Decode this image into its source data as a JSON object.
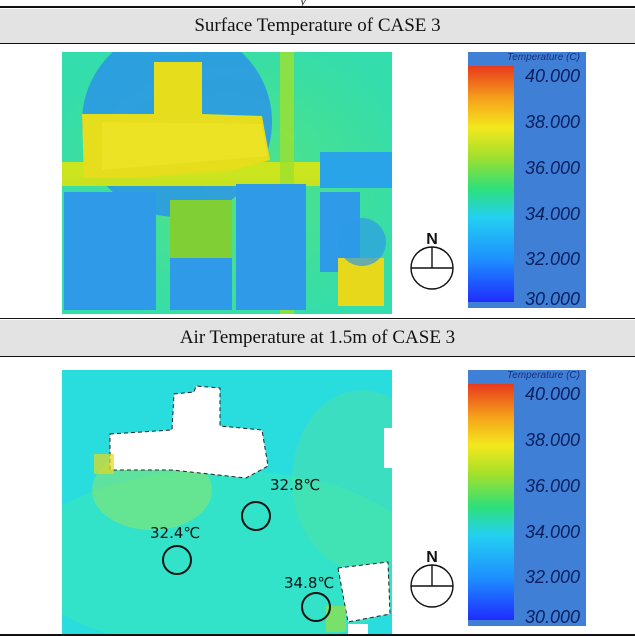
{
  "figure_top_caption": "y",
  "panels": [
    {
      "title": "Surface Temperature of CASE 3",
      "legend": {
        "title": "Temperature (C)",
        "ticks": [
          "40.000",
          "38.000",
          "36.000",
          "34.000",
          "32.000",
          "30.000"
        ],
        "range": [
          30,
          40
        ]
      },
      "compass_label": "N"
    },
    {
      "title": "Air Temperature at 1.5m of CASE 3",
      "legend": {
        "title": "Temperature (C)",
        "ticks": [
          "40.000",
          "38.000",
          "36.000",
          "34.000",
          "32.000",
          "30.000"
        ],
        "range": [
          30,
          40
        ]
      },
      "compass_label": "N",
      "probes": [
        {
          "label": "32.8℃"
        },
        {
          "label": "32.4℃"
        },
        {
          "label": "34.8℃"
        }
      ]
    }
  ],
  "colors": {
    "header_bg": "#e3e3e3",
    "legend_bg": "#3f7fd6",
    "scale": [
      "#1f2cff",
      "#1e90ff",
      "#23d0f0",
      "#2ee07a",
      "#a5e02a",
      "#f4e81d",
      "#f5a21a",
      "#e83a1d"
    ]
  }
}
